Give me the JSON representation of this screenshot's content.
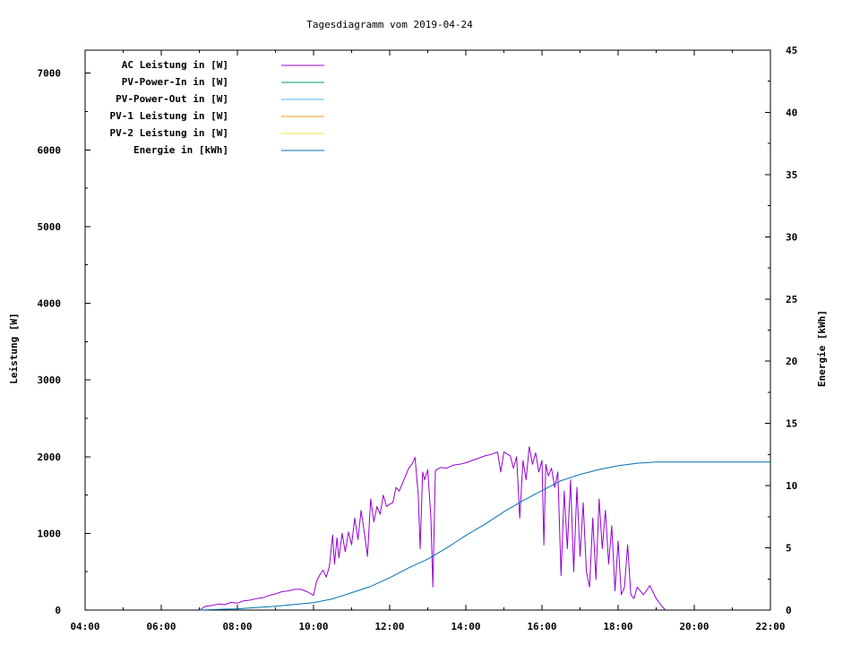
{
  "chart_data": {
    "type": "line",
    "title": "Tagesdiagramm vom 2019-04-24",
    "ylabel": "Leistung [W]",
    "y2label": "Energie [kWh]",
    "xlim": [
      "04:00",
      "22:00"
    ],
    "ylim": [
      0,
      7300
    ],
    "y2lim": [
      0,
      45
    ],
    "xticks": [
      "04:00",
      "06:00",
      "08:00",
      "10:00",
      "12:00",
      "14:00",
      "16:00",
      "18:00",
      "20:00",
      "22:00"
    ],
    "yticks": [
      "0",
      "1000",
      "2000",
      "3000",
      "4000",
      "5000",
      "6000",
      "7000"
    ],
    "y2ticks": [
      "0",
      "5",
      "10",
      "15",
      "20",
      "25",
      "30",
      "35",
      "40",
      "45"
    ],
    "legend_position": "top-left",
    "grid": false,
    "series": [
      {
        "name": "AC Leistung in [W]",
        "color": "#9400d3",
        "axis": "left",
        "points": [
          [
            "07:00",
            0
          ],
          [
            "07:10",
            50
          ],
          [
            "07:20",
            60
          ],
          [
            "07:30",
            80
          ],
          [
            "07:40",
            70
          ],
          [
            "07:50",
            100
          ],
          [
            "08:00",
            90
          ],
          [
            "08:10",
            120
          ],
          [
            "08:20",
            130
          ],
          [
            "08:30",
            150
          ],
          [
            "08:40",
            160
          ],
          [
            "08:50",
            190
          ],
          [
            "09:00",
            210
          ],
          [
            "09:10",
            240
          ],
          [
            "09:20",
            250
          ],
          [
            "09:30",
            270
          ],
          [
            "09:40",
            270
          ],
          [
            "09:50",
            240
          ],
          [
            "10:00",
            190
          ],
          [
            "10:05",
            380
          ],
          [
            "10:10",
            460
          ],
          [
            "10:15",
            520
          ],
          [
            "10:20",
            430
          ],
          [
            "10:25",
            570
          ],
          [
            "10:30",
            980
          ],
          [
            "10:33",
            600
          ],
          [
            "10:37",
            940
          ],
          [
            "10:40",
            680
          ],
          [
            "10:45",
            1000
          ],
          [
            "10:50",
            760
          ],
          [
            "10:55",
            1020
          ],
          [
            "11:00",
            850
          ],
          [
            "11:05",
            1200
          ],
          [
            "11:10",
            920
          ],
          [
            "11:15",
            1300
          ],
          [
            "11:20",
            1010
          ],
          [
            "11:25",
            700
          ],
          [
            "11:30",
            1450
          ],
          [
            "11:35",
            1150
          ],
          [
            "11:40",
            1350
          ],
          [
            "11:45",
            1250
          ],
          [
            "11:50",
            1500
          ],
          [
            "11:55",
            1350
          ],
          [
            "12:00",
            1380
          ],
          [
            "12:05",
            1400
          ],
          [
            "12:10",
            1600
          ],
          [
            "12:15",
            1550
          ],
          [
            "12:20",
            1650
          ],
          [
            "12:25",
            1750
          ],
          [
            "12:30",
            1850
          ],
          [
            "12:35",
            1900
          ],
          [
            "12:40",
            1990
          ],
          [
            "12:45",
            1500
          ],
          [
            "12:48",
            800
          ],
          [
            "12:52",
            1800
          ],
          [
            "12:55",
            1700
          ],
          [
            "13:00",
            1830
          ],
          [
            "13:05",
            1200
          ],
          [
            "13:08",
            300
          ],
          [
            "13:12",
            1820
          ],
          [
            "13:20",
            1860
          ],
          [
            "13:30",
            1850
          ],
          [
            "13:40",
            1890
          ],
          [
            "13:50",
            1900
          ],
          [
            "14:00",
            1920
          ],
          [
            "14:10",
            1950
          ],
          [
            "14:20",
            1980
          ],
          [
            "14:30",
            2010
          ],
          [
            "14:40",
            2030
          ],
          [
            "14:50",
            2060
          ],
          [
            "14:55",
            1800
          ],
          [
            "15:00",
            2060
          ],
          [
            "15:10",
            2010
          ],
          [
            "15:15",
            1850
          ],
          [
            "15:20",
            2000
          ],
          [
            "15:25",
            1200
          ],
          [
            "15:30",
            1950
          ],
          [
            "15:35",
            1700
          ],
          [
            "15:40",
            2130
          ],
          [
            "15:45",
            1900
          ],
          [
            "15:50",
            2050
          ],
          [
            "15:55",
            1800
          ],
          [
            "16:00",
            1950
          ],
          [
            "16:03",
            850
          ],
          [
            "16:06",
            1900
          ],
          [
            "16:10",
            1750
          ],
          [
            "16:15",
            1850
          ],
          [
            "16:20",
            1600
          ],
          [
            "16:25",
            1800
          ],
          [
            "16:30",
            450
          ],
          [
            "16:35",
            1550
          ],
          [
            "16:40",
            800
          ],
          [
            "16:45",
            1700
          ],
          [
            "16:50",
            500
          ],
          [
            "16:55",
            1600
          ],
          [
            "17:00",
            700
          ],
          [
            "17:05",
            1400
          ],
          [
            "17:10",
            500
          ],
          [
            "17:15",
            300
          ],
          [
            "17:20",
            1200
          ],
          [
            "17:25",
            400
          ],
          [
            "17:30",
            1450
          ],
          [
            "17:35",
            800
          ],
          [
            "17:40",
            1300
          ],
          [
            "17:45",
            600
          ],
          [
            "17:50",
            1100
          ],
          [
            "17:55",
            250
          ],
          [
            "18:00",
            900
          ],
          [
            "18:05",
            200
          ],
          [
            "18:10",
            300
          ],
          [
            "18:15",
            850
          ],
          [
            "18:20",
            200
          ],
          [
            "18:25",
            150
          ],
          [
            "18:30",
            300
          ],
          [
            "18:40",
            200
          ],
          [
            "18:50",
            320
          ],
          [
            "19:00",
            150
          ],
          [
            "19:10",
            40
          ],
          [
            "19:15",
            0
          ]
        ]
      },
      {
        "name": "PV-Power-In in [W]",
        "color": "#009e73",
        "axis": "left",
        "points": []
      },
      {
        "name": "PV-Power-Out in [W]",
        "color": "#56b4e9",
        "axis": "left",
        "points": []
      },
      {
        "name": "PV-1 Leistung in [W]",
        "color": "#e69f00",
        "axis": "left",
        "points": []
      },
      {
        "name": "PV-2 Leistung in [W]",
        "color": "#f0e442",
        "axis": "left",
        "points": []
      },
      {
        "name": "Energie in [kWh]",
        "color": "#0072b2",
        "axis": "right",
        "points": [
          [
            "07:00",
            0
          ],
          [
            "08:00",
            0.1
          ],
          [
            "09:00",
            0.3
          ],
          [
            "10:00",
            0.6
          ],
          [
            "10:30",
            0.9
          ],
          [
            "11:00",
            1.4
          ],
          [
            "11:30",
            1.9
          ],
          [
            "12:00",
            2.6
          ],
          [
            "12:30",
            3.4
          ],
          [
            "13:00",
            4.1
          ],
          [
            "13:30",
            5.0
          ],
          [
            "14:00",
            6.0
          ],
          [
            "14:30",
            6.9
          ],
          [
            "15:00",
            7.9
          ],
          [
            "15:30",
            8.8
          ],
          [
            "16:00",
            9.6
          ],
          [
            "16:30",
            10.4
          ],
          [
            "17:00",
            10.9
          ],
          [
            "17:30",
            11.3
          ],
          [
            "18:00",
            11.6
          ],
          [
            "18:30",
            11.8
          ],
          [
            "19:00",
            11.9
          ],
          [
            "19:30",
            11.9
          ],
          [
            "22:00",
            11.9
          ]
        ]
      }
    ]
  }
}
